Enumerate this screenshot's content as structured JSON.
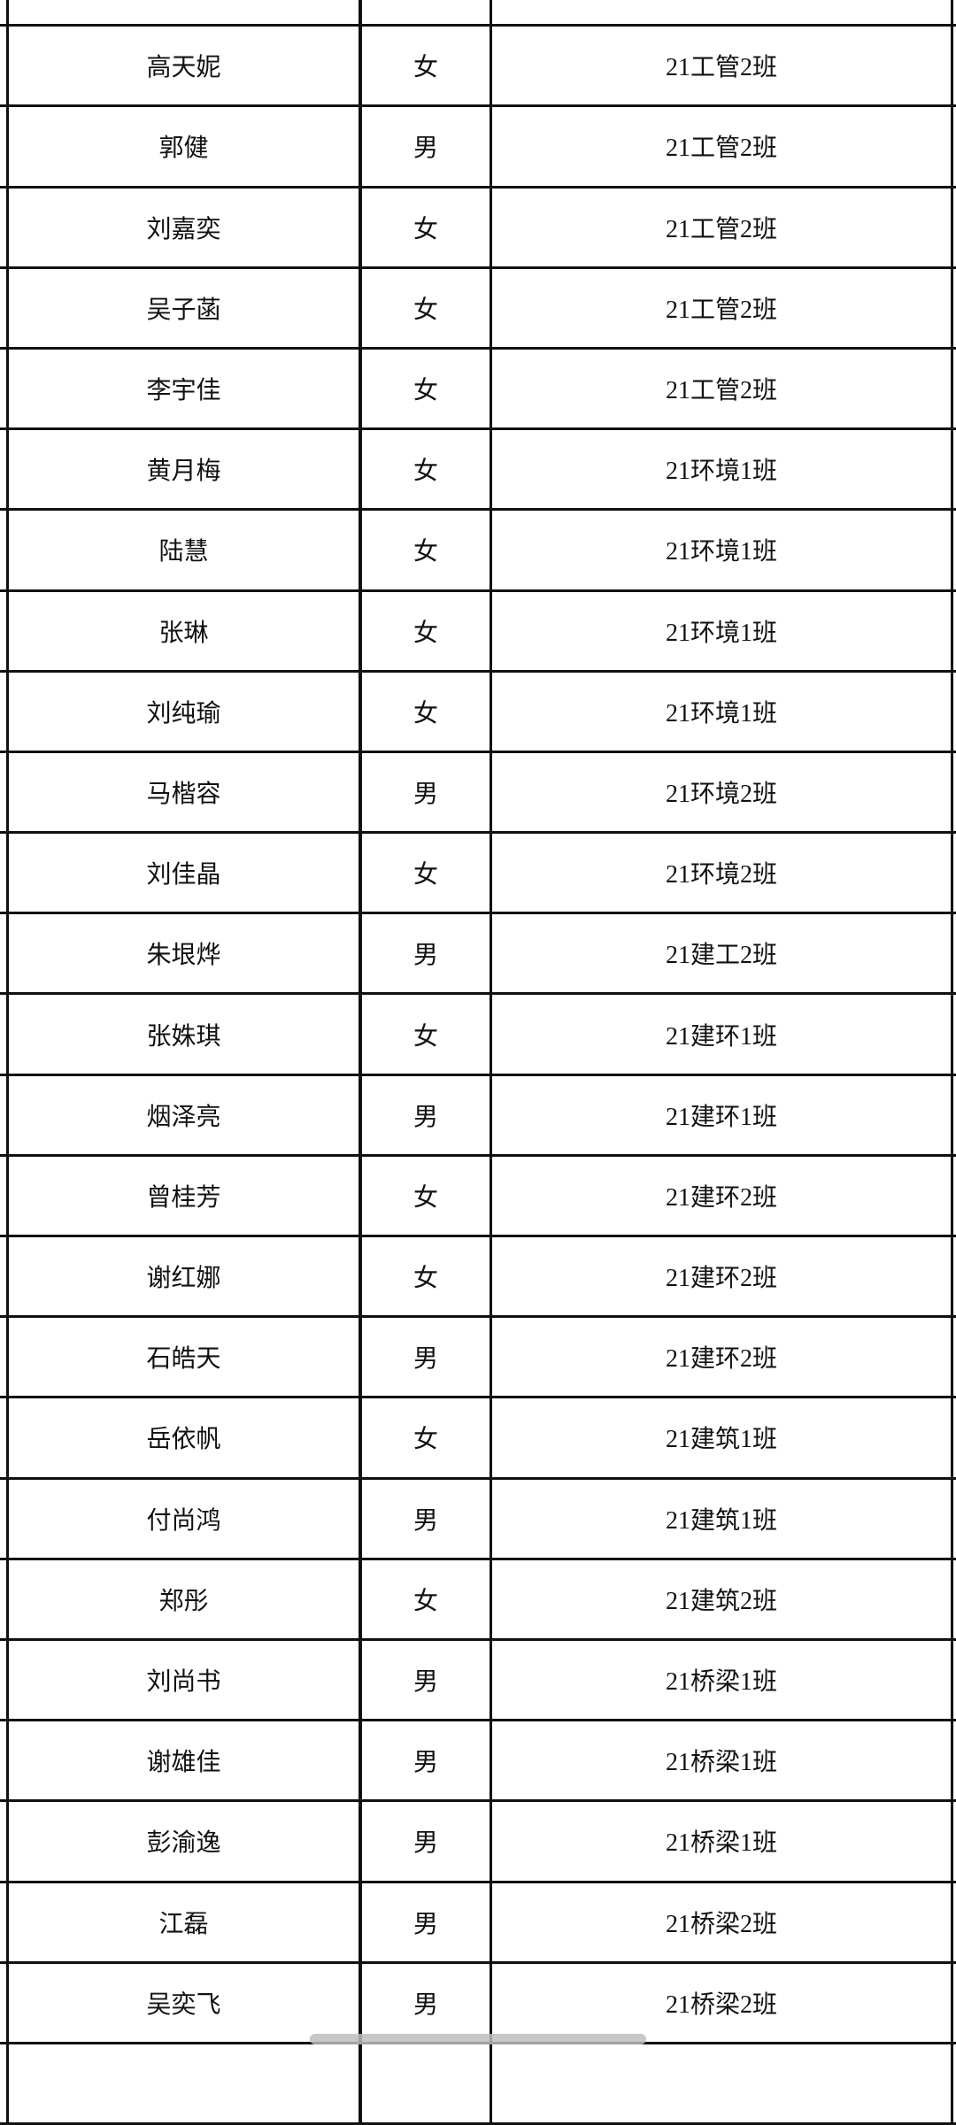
{
  "rows": [
    {
      "name": "",
      "gender": "",
      "class": ""
    },
    {
      "name": "高天妮",
      "gender": "女",
      "class": "21工管2班"
    },
    {
      "name": "郭健",
      "gender": "男",
      "class": "21工管2班"
    },
    {
      "name": "刘嘉奕",
      "gender": "女",
      "class": "21工管2班"
    },
    {
      "name": "吴子菡",
      "gender": "女",
      "class": "21工管2班"
    },
    {
      "name": "李宇佳",
      "gender": "女",
      "class": "21工管2班"
    },
    {
      "name": "黄月梅",
      "gender": "女",
      "class": "21环境1班"
    },
    {
      "name": "陆慧",
      "gender": "女",
      "class": "21环境1班"
    },
    {
      "name": "张琳",
      "gender": "女",
      "class": "21环境1班"
    },
    {
      "name": "刘纯瑜",
      "gender": "女",
      "class": "21环境1班"
    },
    {
      "name": "马楷容",
      "gender": "男",
      "class": "21环境2班"
    },
    {
      "name": "刘佳晶",
      "gender": "女",
      "class": "21环境2班"
    },
    {
      "name": "朱垠烨",
      "gender": "男",
      "class": "21建工2班"
    },
    {
      "name": "张姝琪",
      "gender": "女",
      "class": "21建环1班"
    },
    {
      "name": "烟泽亮",
      "gender": "男",
      "class": "21建环1班"
    },
    {
      "name": "曾桂芳",
      "gender": "女",
      "class": "21建环2班"
    },
    {
      "name": "谢红娜",
      "gender": "女",
      "class": "21建环2班"
    },
    {
      "name": "石皓天",
      "gender": "男",
      "class": "21建环2班"
    },
    {
      "name": "岳依帆",
      "gender": "女",
      "class": "21建筑1班"
    },
    {
      "name": "付尚鸿",
      "gender": "男",
      "class": "21建筑1班"
    },
    {
      "name": "郑彤",
      "gender": "女",
      "class": "21建筑2班"
    },
    {
      "name": "刘尚书",
      "gender": "男",
      "class": "21桥梁1班"
    },
    {
      "name": "谢雄佳",
      "gender": "男",
      "class": "21桥梁1班"
    },
    {
      "name": "彭渝逸",
      "gender": "男",
      "class": "21桥梁1班"
    },
    {
      "name": "江磊",
      "gender": "男",
      "class": "21桥梁2班"
    },
    {
      "name": "吴奕飞",
      "gender": "男",
      "class": "21桥梁2班"
    },
    {
      "name": "",
      "gender": "",
      "class": ""
    }
  ]
}
